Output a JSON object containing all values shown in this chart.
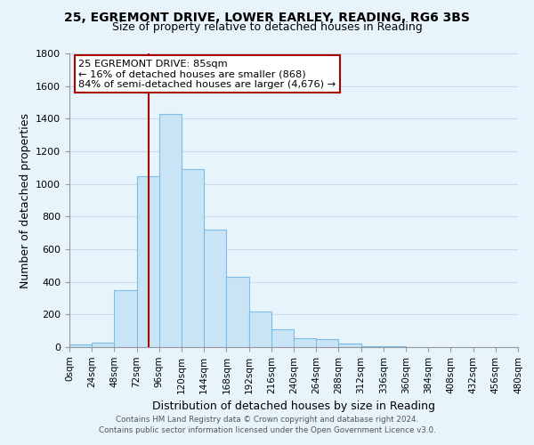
{
  "title_line1": "25, EGREMONT DRIVE, LOWER EARLEY, READING, RG6 3BS",
  "title_line2": "Size of property relative to detached houses in Reading",
  "xlabel": "Distribution of detached houses by size in Reading",
  "ylabel": "Number of detached properties",
  "footnote1": "Contains HM Land Registry data © Crown copyright and database right 2024.",
  "footnote2": "Contains public sector information licensed under the Open Government Licence v3.0.",
  "bin_edges": [
    0,
    24,
    48,
    72,
    96,
    120,
    144,
    168,
    192,
    216,
    240,
    264,
    288,
    312,
    336,
    360,
    384,
    408,
    432,
    456,
    480
  ],
  "bar_heights": [
    15,
    30,
    350,
    1050,
    1430,
    1090,
    720,
    430,
    220,
    110,
    55,
    50,
    20,
    8,
    3,
    1,
    0,
    0,
    0,
    0
  ],
  "bar_color": "#c8e4f5",
  "bar_edgecolor": "#7dbde8",
  "vline_x": 85,
  "vline_color": "#aa0000",
  "annotation_title": "25 EGREMONT DRIVE: 85sqm",
  "annotation_line1": "← 16% of detached houses are smaller (868)",
  "annotation_line2": "84% of semi-detached houses are larger (4,676) →",
  "annotation_box_edgecolor": "#aa0000",
  "annotation_box_facecolor": "#ffffff",
  "ylim": [
    0,
    1800
  ],
  "xlim": [
    0,
    480
  ],
  "tick_labels": [
    "0sqm",
    "24sqm",
    "48sqm",
    "72sqm",
    "96sqm",
    "120sqm",
    "144sqm",
    "168sqm",
    "192sqm",
    "216sqm",
    "240sqm",
    "264sqm",
    "288sqm",
    "312sqm",
    "336sqm",
    "360sqm",
    "384sqm",
    "408sqm",
    "432sqm",
    "456sqm",
    "480sqm"
  ],
  "yticks": [
    0,
    200,
    400,
    600,
    800,
    1000,
    1200,
    1400,
    1600,
    1800
  ],
  "grid_color": "#c8dcee",
  "bg_color": "#e8f4fc"
}
